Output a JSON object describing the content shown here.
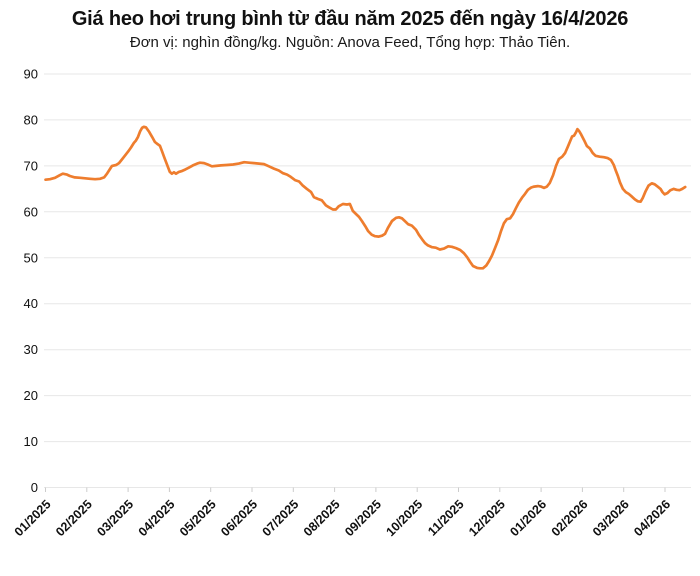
{
  "header": {
    "title": "Giá heo hơi trung bình từ đầu năm 2025 đến ngày 16/4/2026",
    "subtitle": "Đơn vị: nghìn đồng/kg. Nguồn: Anova Feed, Tổng hợp: Thảo Tiên."
  },
  "chart_data": {
    "type": "line",
    "title": "Giá heo hơi trung bình từ đầu năm 2025 đến ngày 16/4/2026",
    "subtitle": "Đơn vị: nghìn đồng/kg. Nguồn: Anova Feed, Tổng hợp: Thảo Tiên.",
    "unit": "nghìn đồng/kg",
    "source": "Anova Feed",
    "compiler": "Thảo Tiên",
    "legend": "none",
    "grid": "horizontal",
    "ylim": [
      0,
      90
    ],
    "y_ticks": [
      90,
      80,
      70,
      60,
      50,
      40,
      30,
      20,
      10,
      0
    ],
    "x_tick_labels": [
      "01/2025",
      "02/2025",
      "03/2025",
      "04/2025",
      "05/2025",
      "06/2025",
      "07/2025",
      "08/2025",
      "09/2025",
      "10/2025",
      "11/2025",
      "12/2025",
      "01/2026",
      "02/2026",
      "03/2026",
      "04/2026"
    ],
    "x_range_months": [
      0,
      15.55
    ],
    "colors": {
      "line": "#ee7d2e",
      "grid": "#e7e7e7",
      "tick": "#cccccc",
      "text": "#111111"
    },
    "series": [
      {
        "name": "Giá heo hơi trung bình",
        "points": [
          [
            0,
            67
          ],
          [
            0.11,
            67.1
          ],
          [
            0.23,
            67.4
          ],
          [
            0.35,
            68
          ],
          [
            0.42,
            68.3
          ],
          [
            0.52,
            68.1
          ],
          [
            0.59,
            67.8
          ],
          [
            0.71,
            67.5
          ],
          [
            0.84,
            67.4
          ],
          [
            0.96,
            67.3
          ],
          [
            1.08,
            67.2
          ],
          [
            1.2,
            67.1
          ],
          [
            1.32,
            67.2
          ],
          [
            1.42,
            67.5
          ],
          [
            1.49,
            68.3
          ],
          [
            1.56,
            69.3
          ],
          [
            1.61,
            70
          ],
          [
            1.71,
            70.2
          ],
          [
            1.78,
            70.6
          ],
          [
            1.85,
            71.4
          ],
          [
            1.92,
            72.2
          ],
          [
            2,
            73.1
          ],
          [
            2.07,
            74
          ],
          [
            2.14,
            75
          ],
          [
            2.19,
            75.5
          ],
          [
            2.24,
            76.3
          ],
          [
            2.29,
            77.5
          ],
          [
            2.34,
            78.3
          ],
          [
            2.38,
            78.5
          ],
          [
            2.43,
            78.4
          ],
          [
            2.51,
            77.4
          ],
          [
            2.58,
            76.3
          ],
          [
            2.65,
            75.2
          ],
          [
            2.72,
            74.7
          ],
          [
            2.77,
            74.4
          ],
          [
            2.82,
            73.2
          ],
          [
            2.87,
            72
          ],
          [
            2.92,
            70.8
          ],
          [
            2.97,
            69.6
          ],
          [
            3.01,
            68.7
          ],
          [
            3.06,
            68.3
          ],
          [
            3.11,
            68.6
          ],
          [
            3.16,
            68.3
          ],
          [
            3.23,
            68.7
          ],
          [
            3.31,
            68.9
          ],
          [
            3.38,
            69.2
          ],
          [
            3.47,
            69.6
          ],
          [
            3.57,
            70.1
          ],
          [
            3.67,
            70.5
          ],
          [
            3.74,
            70.7
          ],
          [
            3.84,
            70.6
          ],
          [
            3.93,
            70.3
          ],
          [
            4.03,
            69.9
          ],
          [
            4.13,
            70
          ],
          [
            4.25,
            70.1
          ],
          [
            4.39,
            70.2
          ],
          [
            4.54,
            70.3
          ],
          [
            4.68,
            70.5
          ],
          [
            4.81,
            70.8
          ],
          [
            4.93,
            70.7
          ],
          [
            5.05,
            70.6
          ],
          [
            5.17,
            70.5
          ],
          [
            5.29,
            70.4
          ],
          [
            5.41,
            69.9
          ],
          [
            5.53,
            69.4
          ],
          [
            5.65,
            69
          ],
          [
            5.75,
            68.4
          ],
          [
            5.85,
            68.1
          ],
          [
            5.94,
            67.6
          ],
          [
            6.04,
            66.9
          ],
          [
            6.14,
            66.6
          ],
          [
            6.23,
            65.7
          ],
          [
            6.33,
            65
          ],
          [
            6.43,
            64.3
          ],
          [
            6.5,
            63.2
          ],
          [
            6.6,
            62.8
          ],
          [
            6.69,
            62.5
          ],
          [
            6.79,
            61.4
          ],
          [
            6.86,
            61
          ],
          [
            6.96,
            60.5
          ],
          [
            7.03,
            60.5
          ],
          [
            7.1,
            61.2
          ],
          [
            7.2,
            61.7
          ],
          [
            7.3,
            61.6
          ],
          [
            7.37,
            61.7
          ],
          [
            7.44,
            60.2
          ],
          [
            7.52,
            59.5
          ],
          [
            7.59,
            58.9
          ],
          [
            7.66,
            58
          ],
          [
            7.74,
            56.9
          ],
          [
            7.81,
            55.8
          ],
          [
            7.9,
            55
          ],
          [
            7.98,
            54.7
          ],
          [
            8.07,
            54.6
          ],
          [
            8.15,
            54.8
          ],
          [
            8.22,
            55.2
          ],
          [
            8.29,
            56.5
          ],
          [
            8.39,
            58
          ],
          [
            8.49,
            58.7
          ],
          [
            8.56,
            58.8
          ],
          [
            8.63,
            58.6
          ],
          [
            8.7,
            58
          ],
          [
            8.78,
            57.3
          ],
          [
            8.87,
            57
          ],
          [
            8.97,
            56.1
          ],
          [
            9.04,
            55
          ],
          [
            9.12,
            54
          ],
          [
            9.19,
            53.2
          ],
          [
            9.26,
            52.7
          ],
          [
            9.36,
            52.3
          ],
          [
            9.45,
            52.2
          ],
          [
            9.55,
            51.8
          ],
          [
            9.65,
            52
          ],
          [
            9.75,
            52.5
          ],
          [
            9.84,
            52.4
          ],
          [
            9.94,
            52.1
          ],
          [
            10.04,
            51.7
          ],
          [
            10.13,
            51
          ],
          [
            10.21,
            50.1
          ],
          [
            10.28,
            49.1
          ],
          [
            10.35,
            48.2
          ],
          [
            10.45,
            47.8
          ],
          [
            10.52,
            47.7
          ],
          [
            10.59,
            47.7
          ],
          [
            10.67,
            48.3
          ],
          [
            10.74,
            49.3
          ],
          [
            10.81,
            50.5
          ],
          [
            10.88,
            52
          ],
          [
            10.96,
            53.8
          ],
          [
            11.03,
            55.8
          ],
          [
            11.1,
            57.5
          ],
          [
            11.17,
            58.4
          ],
          [
            11.25,
            58.6
          ],
          [
            11.32,
            59.5
          ],
          [
            11.39,
            60.8
          ],
          [
            11.46,
            62
          ],
          [
            11.54,
            63.1
          ],
          [
            11.61,
            63.9
          ],
          [
            11.68,
            64.8
          ],
          [
            11.76,
            65.3
          ],
          [
            11.83,
            65.5
          ],
          [
            11.92,
            65.6
          ],
          [
            12,
            65.5
          ],
          [
            12.07,
            65.2
          ],
          [
            12.14,
            65.5
          ],
          [
            12.21,
            66.3
          ],
          [
            12.29,
            68
          ],
          [
            12.36,
            70
          ],
          [
            12.43,
            71.5
          ],
          [
            12.51,
            72
          ],
          [
            12.58,
            72.8
          ],
          [
            12.65,
            74.2
          ],
          [
            12.7,
            75.3
          ],
          [
            12.75,
            76.4
          ],
          [
            12.8,
            76.6
          ],
          [
            12.85,
            77.4
          ],
          [
            12.88,
            78
          ],
          [
            12.92,
            77.6
          ],
          [
            12.97,
            76.8
          ],
          [
            13.04,
            75.6
          ],
          [
            13.11,
            74.3
          ],
          [
            13.18,
            73.8
          ],
          [
            13.25,
            72.8
          ],
          [
            13.32,
            72.2
          ],
          [
            13.42,
            72
          ],
          [
            13.52,
            71.9
          ],
          [
            13.61,
            71.7
          ],
          [
            13.69,
            71.3
          ],
          [
            13.76,
            70.2
          ],
          [
            13.81,
            68.9
          ],
          [
            13.86,
            67.8
          ],
          [
            13.91,
            66.4
          ],
          [
            13.98,
            65
          ],
          [
            14.05,
            64.3
          ],
          [
            14.12,
            63.9
          ],
          [
            14.2,
            63.3
          ],
          [
            14.27,
            62.7
          ],
          [
            14.34,
            62.3
          ],
          [
            14.41,
            62.2
          ],
          [
            14.46,
            63
          ],
          [
            14.53,
            64.5
          ],
          [
            14.6,
            65.7
          ],
          [
            14.68,
            66.2
          ],
          [
            14.75,
            66
          ],
          [
            14.82,
            65.5
          ],
          [
            14.89,
            65
          ],
          [
            14.94,
            64.3
          ],
          [
            14.99,
            63.8
          ],
          [
            15.06,
            64.1
          ],
          [
            15.13,
            64.7
          ],
          [
            15.21,
            65
          ],
          [
            15.28,
            64.8
          ],
          [
            15.35,
            64.7
          ],
          [
            15.42,
            65
          ],
          [
            15.49,
            65.4
          ]
        ]
      }
    ]
  }
}
